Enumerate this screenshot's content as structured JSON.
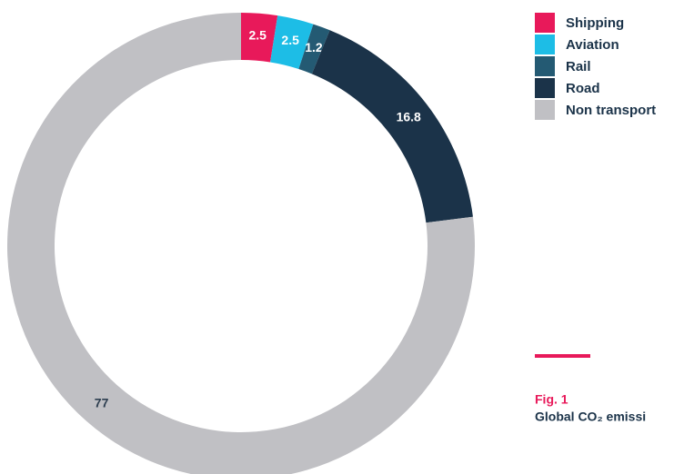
{
  "chart_data": {
    "type": "donut",
    "categories": [
      "Shipping",
      "Aviation",
      "Rail",
      "Road",
      "Non transport"
    ],
    "values": [
      2.5,
      2.5,
      1.2,
      16.8,
      77
    ],
    "colors": [
      "#e8195a",
      "#1dbde6",
      "#245a73",
      "#1b3349",
      "#c0c0c4"
    ],
    "caption": {
      "label": "Fig. 1",
      "title": "Global CO₂ emissi"
    },
    "legend": "top-right"
  }
}
